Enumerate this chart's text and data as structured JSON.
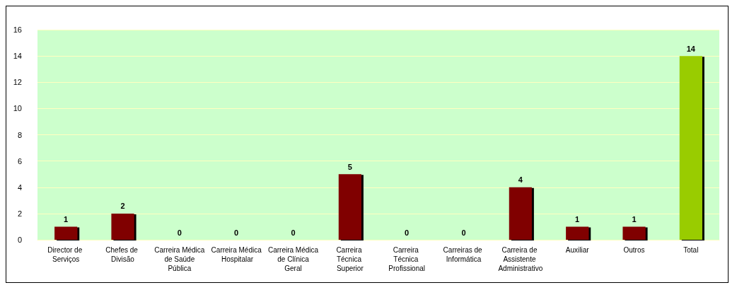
{
  "chart_data": {
    "type": "bar",
    "categories": [
      "Director de Serviços",
      "Chefes de Divisão",
      "Carreira Médica de Saúde Pública",
      "Carreira Médica Hospitalar",
      "Carreira Médica de Clínica Geral",
      "Carreira Técnica Superior",
      "Carreira Técnica Profissional",
      "Carreiras de Informática",
      "Carreira de Assistente Administrativo",
      "Auxiliar",
      "Outros",
      "Total"
    ],
    "values": [
      1,
      2,
      0,
      0,
      0,
      5,
      0,
      0,
      4,
      1,
      1,
      14
    ],
    "colors": [
      "#800000",
      "#800000",
      "#800000",
      "#800000",
      "#800000",
      "#800000",
      "#800000",
      "#800000",
      "#800000",
      "#800000",
      "#800000",
      "#99cc00"
    ],
    "ylim": [
      0,
      16
    ],
    "yticks": [
      0,
      2,
      4,
      6,
      8,
      10,
      12,
      14,
      16
    ],
    "grid": "y",
    "data_labels": true
  }
}
